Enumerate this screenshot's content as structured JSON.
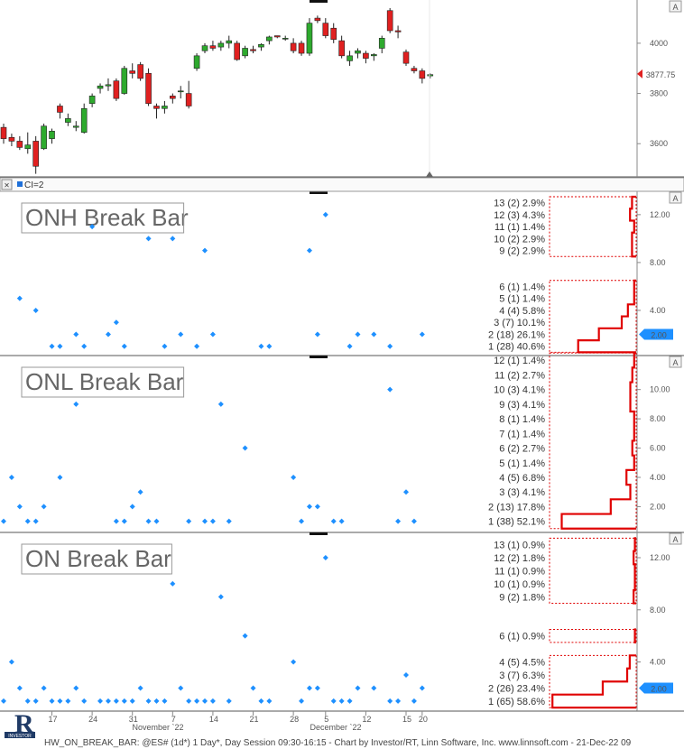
{
  "footer": "HW_ON_BREAK_BAR: @ES# (1d*) 1 Day*, Day Session 09:30-16:15 - Chart by Investor/RT, Linn Software, Inc. www.linnsoft.com - 21-Dec-22 09",
  "ci_label": "CI=2",
  "auto_scale_label": "A",
  "logo_text": "INVESTOR",
  "colors": {
    "up": "#2eaa2e",
    "down": "#e02020",
    "dot": "#1e90ff",
    "dist": "#e00000",
    "last": "#1e90ff"
  },
  "x_axis": {
    "date_ticks": [
      "17",
      "24",
      "31",
      "7",
      "14",
      "21",
      "28",
      "5",
      "12",
      "15",
      "20"
    ],
    "month_labels": [
      "November `22",
      "December `22"
    ]
  },
  "chart_data": [
    {
      "type": "candlestick",
      "title": "",
      "y_ticks": [
        3600,
        3800,
        4000
      ],
      "ylim": [
        3475,
        4165
      ],
      "last_value": "3877.75",
      "candles": [
        {
          "o": 3665,
          "h": 3680,
          "l": 3600,
          "c": 3620
        },
        {
          "o": 3625,
          "h": 3640,
          "l": 3590,
          "c": 3610
        },
        {
          "o": 3610,
          "h": 3630,
          "l": 3575,
          "c": 3585
        },
        {
          "o": 3580,
          "h": 3645,
          "l": 3560,
          "c": 3595
        },
        {
          "o": 3610,
          "h": 3630,
          "l": 3480,
          "c": 3510
        },
        {
          "o": 3580,
          "h": 3680,
          "l": 3575,
          "c": 3670
        },
        {
          "o": 3620,
          "h": 3660,
          "l": 3600,
          "c": 3650
        },
        {
          "o": 3750,
          "h": 3760,
          "l": 3700,
          "c": 3725
        },
        {
          "o": 3685,
          "h": 3720,
          "l": 3670,
          "c": 3700
        },
        {
          "o": 3665,
          "h": 3690,
          "l": 3650,
          "c": 3670
        },
        {
          "o": 3645,
          "h": 3760,
          "l": 3640,
          "c": 3740
        },
        {
          "o": 3760,
          "h": 3800,
          "l": 3745,
          "c": 3790
        },
        {
          "o": 3820,
          "h": 3840,
          "l": 3800,
          "c": 3830
        },
        {
          "o": 3830,
          "h": 3860,
          "l": 3810,
          "c": 3835
        },
        {
          "o": 3850,
          "h": 3860,
          "l": 3770,
          "c": 3780
        },
        {
          "o": 3800,
          "h": 3910,
          "l": 3795,
          "c": 3900
        },
        {
          "o": 3890,
          "h": 3920,
          "l": 3860,
          "c": 3880
        },
        {
          "o": 3915,
          "h": 3925,
          "l": 3850,
          "c": 3860
        },
        {
          "o": 3880,
          "h": 3900,
          "l": 3750,
          "c": 3760
        },
        {
          "o": 3750,
          "h": 3760,
          "l": 3700,
          "c": 3740
        },
        {
          "o": 3740,
          "h": 3770,
          "l": 3720,
          "c": 3750
        },
        {
          "o": 3790,
          "h": 3800,
          "l": 3760,
          "c": 3780
        },
        {
          "o": 3810,
          "h": 3830,
          "l": 3780,
          "c": 3810
        },
        {
          "o": 3800,
          "h": 3850,
          "l": 3740,
          "c": 3750
        },
        {
          "o": 3900,
          "h": 3960,
          "l": 3890,
          "c": 3950
        },
        {
          "o": 3970,
          "h": 4000,
          "l": 3960,
          "c": 3990
        },
        {
          "o": 3990,
          "h": 4010,
          "l": 3970,
          "c": 3980
        },
        {
          "o": 3985,
          "h": 4010,
          "l": 3970,
          "c": 4000
        },
        {
          "o": 4000,
          "h": 4030,
          "l": 3980,
          "c": 4010
        },
        {
          "o": 4000,
          "h": 4010,
          "l": 3930,
          "c": 3935
        },
        {
          "o": 3950,
          "h": 3990,
          "l": 3940,
          "c": 3980
        },
        {
          "o": 3975,
          "h": 3990,
          "l": 3960,
          "c": 3970
        },
        {
          "o": 3985,
          "h": 4000,
          "l": 3970,
          "c": 3995
        },
        {
          "o": 4010,
          "h": 4030,
          "l": 3995,
          "c": 4025
        },
        {
          "o": 4030,
          "h": 4030,
          "l": 4020,
          "c": 4025
        },
        {
          "o": 4020,
          "h": 4030,
          "l": 4010,
          "c": 4020
        },
        {
          "o": 4000,
          "h": 4020,
          "l": 3960,
          "c": 3970
        },
        {
          "o": 4000,
          "h": 4010,
          "l": 3950,
          "c": 3960
        },
        {
          "o": 3960,
          "h": 4100,
          "l": 3950,
          "c": 4080
        },
        {
          "o": 4100,
          "h": 4110,
          "l": 4080,
          "c": 4090
        },
        {
          "o": 4080,
          "h": 4100,
          "l": 4020,
          "c": 4030
        },
        {
          "o": 4060,
          "h": 4080,
          "l": 4000,
          "c": 4015
        },
        {
          "o": 4010,
          "h": 4030,
          "l": 3940,
          "c": 3950
        },
        {
          "o": 3930,
          "h": 3970,
          "l": 3910,
          "c": 3950
        },
        {
          "o": 3960,
          "h": 3980,
          "l": 3940,
          "c": 3970
        },
        {
          "o": 3960,
          "h": 3970,
          "l": 3920,
          "c": 3940
        },
        {
          "o": 3950,
          "h": 3960,
          "l": 3930,
          "c": 3955
        },
        {
          "o": 3980,
          "h": 4030,
          "l": 3960,
          "c": 4020
        },
        {
          "o": 4130,
          "h": 4140,
          "l": 4040,
          "c": 4050
        },
        {
          "o": 4050,
          "h": 4070,
          "l": 4020,
          "c": 4045
        },
        {
          "o": 3965,
          "h": 3975,
          "l": 3910,
          "c": 3920
        },
        {
          "o": 3900,
          "h": 3910,
          "l": 3880,
          "c": 3890
        },
        {
          "o": 3890,
          "h": 3900,
          "l": 3840,
          "c": 3860
        },
        {
          "o": 3870,
          "h": 3880,
          "l": 3860,
          "c": 3875
        }
      ]
    },
    {
      "type": "scatter",
      "title": "ONH Break Bar",
      "y_ticks": [
        4,
        8,
        12
      ],
      "y_tick_labels": [
        "4.00",
        "8.00",
        "12.00"
      ],
      "ylim": [
        0.3,
        13.8
      ],
      "last_value": "2.00",
      "points": [
        {
          "x": 6,
          "y": 1
        },
        {
          "x": 7,
          "y": 1
        },
        {
          "x": 2,
          "y": 5
        },
        {
          "x": 4,
          "y": 4
        },
        {
          "x": 9,
          "y": 2
        },
        {
          "x": 10,
          "y": 1
        },
        {
          "x": 11,
          "y": 11
        },
        {
          "x": 13,
          "y": 2
        },
        {
          "x": 14,
          "y": 3
        },
        {
          "x": 15,
          "y": 1
        },
        {
          "x": 18,
          "y": 10
        },
        {
          "x": 20,
          "y": 1
        },
        {
          "x": 21,
          "y": 10
        },
        {
          "x": 22,
          "y": 2
        },
        {
          "x": 24,
          "y": 1
        },
        {
          "x": 25,
          "y": 9
        },
        {
          "x": 26,
          "y": 2
        },
        {
          "x": 32,
          "y": 1
        },
        {
          "x": 33,
          "y": 1
        },
        {
          "x": 38,
          "y": 9
        },
        {
          "x": 39,
          "y": 2
        },
        {
          "x": 40,
          "y": 12
        },
        {
          "x": 43,
          "y": 1
        },
        {
          "x": 44,
          "y": 2
        },
        {
          "x": 46,
          "y": 2
        },
        {
          "x": 48,
          "y": 1
        },
        {
          "x": 52,
          "y": 2
        }
      ],
      "distribution": [
        {
          "label": "13 (2) 2.9%",
          "value": 13,
          "pct": 2.9
        },
        {
          "label": "12 (3) 4.3%",
          "value": 12,
          "pct": 4.3
        },
        {
          "label": "11 (1) 1.4%",
          "value": 11,
          "pct": 1.4
        },
        {
          "label": "10 (2) 2.9%",
          "value": 10,
          "pct": 2.9
        },
        {
          "label": "9 (2) 2.9%",
          "value": 9,
          "pct": 2.9
        },
        {
          "label": "6 (1) 1.4%",
          "value": 6,
          "pct": 1.4
        },
        {
          "label": "5 (1) 1.4%",
          "value": 5,
          "pct": 1.4
        },
        {
          "label": "4 (4) 5.8%",
          "value": 4,
          "pct": 5.8
        },
        {
          "label": "3 (7) 10.1%",
          "value": 3,
          "pct": 10.1
        },
        {
          "label": "2 (18) 26.1%",
          "value": 2,
          "pct": 26.1
        },
        {
          "label": "1 (28) 40.6%",
          "value": 1,
          "pct": 40.6
        }
      ]
    },
    {
      "type": "scatter",
      "title": "ONL Break Bar",
      "y_ticks": [
        2,
        4,
        6,
        8,
        10
      ],
      "y_tick_labels": [
        "2.00",
        "4.00",
        "6.00",
        "8.00",
        "10.00"
      ],
      "ylim": [
        0.3,
        12.2
      ],
      "last_value": "",
      "points": [
        {
          "x": 0,
          "y": 1
        },
        {
          "x": 1,
          "y": 4
        },
        {
          "x": 2,
          "y": 2
        },
        {
          "x": 3,
          "y": 1
        },
        {
          "x": 4,
          "y": 1
        },
        {
          "x": 5,
          "y": 2
        },
        {
          "x": 7,
          "y": 4
        },
        {
          "x": 9,
          "y": 9
        },
        {
          "x": 14,
          "y": 1
        },
        {
          "x": 15,
          "y": 1
        },
        {
          "x": 16,
          "y": 2
        },
        {
          "x": 17,
          "y": 3
        },
        {
          "x": 18,
          "y": 1
        },
        {
          "x": 19,
          "y": 1
        },
        {
          "x": 23,
          "y": 1
        },
        {
          "x": 25,
          "y": 1
        },
        {
          "x": 26,
          "y": 1
        },
        {
          "x": 27,
          "y": 9
        },
        {
          "x": 28,
          "y": 1
        },
        {
          "x": 30,
          "y": 6
        },
        {
          "x": 36,
          "y": 4
        },
        {
          "x": 37,
          "y": 1
        },
        {
          "x": 38,
          "y": 2
        },
        {
          "x": 39,
          "y": 2
        },
        {
          "x": 41,
          "y": 1
        },
        {
          "x": 42,
          "y": 1
        },
        {
          "x": 48,
          "y": 10
        },
        {
          "x": 49,
          "y": 1
        },
        {
          "x": 50,
          "y": 3
        },
        {
          "x": 51,
          "y": 1
        }
      ],
      "distribution": [
        {
          "label": "12 (1) 1.4%",
          "value": 12,
          "pct": 1.4
        },
        {
          "label": "11 (2) 2.7%",
          "value": 11,
          "pct": 2.7
        },
        {
          "label": "10 (3) 4.1%",
          "value": 10,
          "pct": 4.1
        },
        {
          "label": "9 (3) 4.1%",
          "value": 9,
          "pct": 4.1
        },
        {
          "label": "8 (1) 1.4%",
          "value": 8,
          "pct": 1.4
        },
        {
          "label": "7 (1) 1.4%",
          "value": 7,
          "pct": 1.4
        },
        {
          "label": "6 (2) 2.7%",
          "value": 6,
          "pct": 2.7
        },
        {
          "label": "5 (1) 1.4%",
          "value": 5,
          "pct": 1.4
        },
        {
          "label": "4 (5) 6.8%",
          "value": 4,
          "pct": 6.8
        },
        {
          "label": "3 (3) 4.1%",
          "value": 3,
          "pct": 4.1
        },
        {
          "label": "2 (13) 17.8%",
          "value": 2,
          "pct": 17.8
        },
        {
          "label": "1 (38) 52.1%",
          "value": 1,
          "pct": 52.1
        }
      ]
    },
    {
      "type": "scatter",
      "title": "ON Break Bar",
      "y_ticks": [
        4,
        8,
        12
      ],
      "y_tick_labels": [
        "4.00",
        "8.00",
        "12.00"
      ],
      "ylim": [
        0.3,
        13.8
      ],
      "last_value": "2.00",
      "points": [
        {
          "x": 0,
          "y": 1
        },
        {
          "x": 1,
          "y": 4
        },
        {
          "x": 2,
          "y": 2
        },
        {
          "x": 3,
          "y": 1
        },
        {
          "x": 4,
          "y": 1
        },
        {
          "x": 5,
          "y": 2
        },
        {
          "x": 6,
          "y": 1
        },
        {
          "x": 7,
          "y": 1
        },
        {
          "x": 8,
          "y": 1
        },
        {
          "x": 9,
          "y": 2
        },
        {
          "x": 10,
          "y": 1
        },
        {
          "x": 12,
          "y": 1
        },
        {
          "x": 13,
          "y": 1
        },
        {
          "x": 14,
          "y": 1
        },
        {
          "x": 15,
          "y": 1
        },
        {
          "x": 16,
          "y": 1
        },
        {
          "x": 17,
          "y": 2
        },
        {
          "x": 18,
          "y": 1
        },
        {
          "x": 19,
          "y": 1
        },
        {
          "x": 20,
          "y": 1
        },
        {
          "x": 21,
          "y": 10
        },
        {
          "x": 22,
          "y": 2
        },
        {
          "x": 23,
          "y": 1
        },
        {
          "x": 24,
          "y": 1
        },
        {
          "x": 25,
          "y": 1
        },
        {
          "x": 26,
          "y": 1
        },
        {
          "x": 27,
          "y": 9
        },
        {
          "x": 28,
          "y": 1
        },
        {
          "x": 30,
          "y": 6
        },
        {
          "x": 31,
          "y": 2
        },
        {
          "x": 32,
          "y": 1
        },
        {
          "x": 33,
          "y": 1
        },
        {
          "x": 36,
          "y": 4
        },
        {
          "x": 37,
          "y": 1
        },
        {
          "x": 38,
          "y": 2
        },
        {
          "x": 39,
          "y": 2
        },
        {
          "x": 40,
          "y": 12
        },
        {
          "x": 41,
          "y": 1
        },
        {
          "x": 42,
          "y": 1
        },
        {
          "x": 43,
          "y": 1
        },
        {
          "x": 44,
          "y": 2
        },
        {
          "x": 46,
          "y": 2
        },
        {
          "x": 48,
          "y": 1
        },
        {
          "x": 49,
          "y": 1
        },
        {
          "x": 50,
          "y": 3
        },
        {
          "x": 51,
          "y": 1
        },
        {
          "x": 52,
          "y": 2
        }
      ],
      "distribution": [
        {
          "label": "13 (1) 0.9%",
          "value": 13,
          "pct": 0.9
        },
        {
          "label": "12 (2) 1.8%",
          "value": 12,
          "pct": 1.8
        },
        {
          "label": "11 (1) 0.9%",
          "value": 11,
          "pct": 0.9
        },
        {
          "label": "10 (1) 0.9%",
          "value": 10,
          "pct": 0.9
        },
        {
          "label": "9 (2) 1.8%",
          "value": 9,
          "pct": 1.8
        },
        {
          "label": "6 (1) 0.9%",
          "value": 6,
          "pct": 0.9
        },
        {
          "label": "4 (5) 4.5%",
          "value": 4,
          "pct": 4.5
        },
        {
          "label": "3 (7) 6.3%",
          "value": 3,
          "pct": 6.3
        },
        {
          "label": "2 (26) 23.4%",
          "value": 2,
          "pct": 23.4
        },
        {
          "label": "1 (65) 58.6%",
          "value": 1,
          "pct": 58.6
        }
      ]
    }
  ]
}
